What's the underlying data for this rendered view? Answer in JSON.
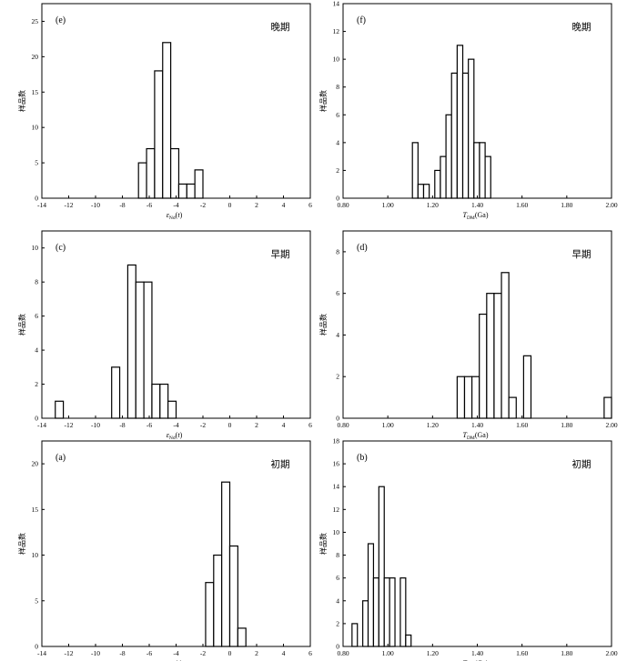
{
  "chart_data": [
    {
      "id": "e",
      "type": "bar",
      "panel_label": "(e)",
      "period_label": "晚期",
      "ylabel": "样品数",
      "xlabel": "εNd(t)",
      "xlim": [
        -14,
        6
      ],
      "ylim": [
        0,
        27.5
      ],
      "xticks": [
        "-14",
        "-12",
        "-10",
        "-8",
        "-6",
        "-4",
        "-2",
        "0",
        "2",
        "4",
        "6"
      ],
      "yticks": [
        "0",
        "5",
        "10",
        "15",
        "20",
        "25"
      ],
      "bin_width": 0.6,
      "x": [
        -6.8,
        -6.2,
        -5.6,
        -5.0,
        -4.4,
        -3.8,
        -3.2,
        -2.6
      ],
      "values": [
        5,
        7,
        18,
        22,
        7,
        2,
        2,
        4
      ]
    },
    {
      "id": "f",
      "type": "bar",
      "panel_label": "(f)",
      "period_label": "晚期",
      "ylabel": "样品数",
      "xlabel": "TDM(Ga)",
      "xlim": [
        0.8,
        2.0
      ],
      "ylim": [
        0,
        14
      ],
      "xticks": [
        "0.80",
        "1.00",
        "1.20",
        "1.40",
        "1.60",
        "1.80",
        "2.00"
      ],
      "yticks": [
        "0",
        "2",
        "4",
        "6",
        "8",
        "10",
        "12",
        "14"
      ],
      "bin_width": 0.025,
      "x": [
        1.11,
        1.135,
        1.16,
        1.21,
        1.235,
        1.26,
        1.285,
        1.31,
        1.335,
        1.36,
        1.385,
        1.41,
        1.435
      ],
      "values": [
        4,
        1,
        1,
        2,
        3,
        6,
        9,
        11,
        9,
        10,
        4,
        4,
        3
      ]
    },
    {
      "id": "c",
      "type": "bar",
      "panel_label": "(c)",
      "period_label": "早期",
      "ylabel": "样品数",
      "xlabel": "εNd(t)",
      "xlim": [
        -14,
        6
      ],
      "ylim": [
        0,
        11
      ],
      "xticks": [
        "-14",
        "-12",
        "-10",
        "-8",
        "-6",
        "-4",
        "-2",
        "0",
        "2",
        "4",
        "6"
      ],
      "yticks": [
        "0",
        "2",
        "4",
        "6",
        "8",
        "10"
      ],
      "bin_width": 0.6,
      "x": [
        -13.0,
        -8.8,
        -7.6,
        -7.0,
        -6.4,
        -5.8,
        -5.2,
        -4.6
      ],
      "values": [
        1,
        3,
        9,
        8,
        8,
        2,
        2,
        1
      ]
    },
    {
      "id": "d",
      "type": "bar",
      "panel_label": "(d)",
      "period_label": "早期",
      "ylabel": "样品数",
      "xlabel": "TDM(Ga)",
      "xlim": [
        0.8,
        2.0
      ],
      "ylim": [
        0,
        9
      ],
      "xticks": [
        "0.80",
        "1.00",
        "1.20",
        "1.40",
        "1.60",
        "1.80",
        "2.00"
      ],
      "yticks": [
        "0",
        "2",
        "4",
        "6",
        "8"
      ],
      "bin_width": 0.033,
      "x": [
        1.31,
        1.343,
        1.376,
        1.409,
        1.442,
        1.475,
        1.508,
        1.541,
        1.607,
        1.967
      ],
      "values": [
        2,
        2,
        2,
        5,
        6,
        6,
        7,
        1,
        3,
        1
      ]
    },
    {
      "id": "a",
      "type": "bar",
      "panel_label": "(a)",
      "period_label": "初期",
      "ylabel": "样品数",
      "xlabel": "εNd(t)",
      "xlim": [
        -14,
        6
      ],
      "ylim": [
        0,
        22.5
      ],
      "xticks": [
        "-14",
        "-12",
        "-10",
        "-8",
        "-6",
        "-4",
        "-2",
        "0",
        "2",
        "4",
        "6"
      ],
      "yticks": [
        "0",
        "5",
        "10",
        "15",
        "20"
      ],
      "bin_width": 0.6,
      "x": [
        -1.8,
        -1.2,
        -0.6,
        0.0,
        0.6
      ],
      "values": [
        7,
        10,
        18,
        11,
        2
      ]
    },
    {
      "id": "b",
      "type": "bar",
      "panel_label": "(b)",
      "period_label": "初期",
      "ylabel": "样品数",
      "xlabel": "TDM(Ga)",
      "xlim": [
        0.8,
        2.0
      ],
      "ylim": [
        0,
        18
      ],
      "xticks": [
        "0.80",
        "1.00",
        "1.20",
        "1.40",
        "1.60",
        "1.80",
        "2.00"
      ],
      "yticks": [
        "0",
        "2",
        "4",
        "6",
        "8",
        "10",
        "12",
        "14",
        "16",
        "18"
      ],
      "bin_width": 0.024,
      "x": [
        0.84,
        0.888,
        0.912,
        0.936,
        0.96,
        0.984,
        1.008,
        1.056,
        1.08
      ],
      "values": [
        2,
        4,
        9,
        6,
        14,
        6,
        6,
        6,
        1
      ]
    }
  ]
}
